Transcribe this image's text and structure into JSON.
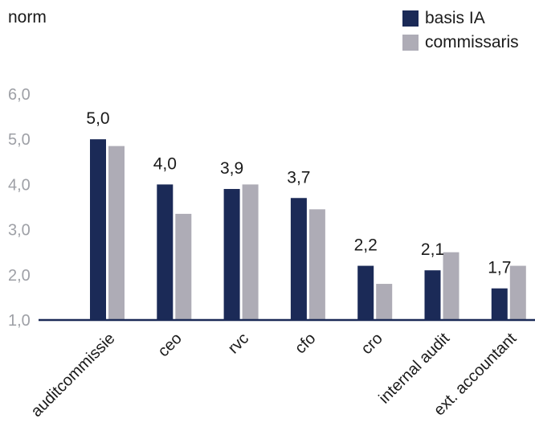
{
  "chart_data": {
    "type": "bar",
    "unit_label": "norm",
    "categories": [
      "auditcommissie",
      "ceo",
      "rvc",
      "cfo",
      "cro",
      "internal audit",
      "ext. accountant"
    ],
    "series": [
      {
        "name": "basis IA",
        "color": "#1b2a57",
        "values": [
          5.0,
          4.0,
          3.9,
          3.7,
          2.2,
          2.1,
          1.7
        ]
      },
      {
        "name": "commissaris",
        "color": "#aeacb6",
        "values": [
          4.85,
          3.35,
          4.0,
          3.45,
          1.8,
          2.5,
          2.2
        ]
      }
    ],
    "data_labels": [
      "5,0",
      "4,0",
      "3,9",
      "3,7",
      "2,2",
      "2,1",
      "1,7"
    ],
    "yticks": [
      "1,0",
      "2,0",
      "3,0",
      "4,0",
      "5,0",
      "6,0"
    ],
    "ylim": [
      1,
      6
    ],
    "legend_position": "top-right",
    "grid": false,
    "axis_color": "#1b2a57"
  }
}
